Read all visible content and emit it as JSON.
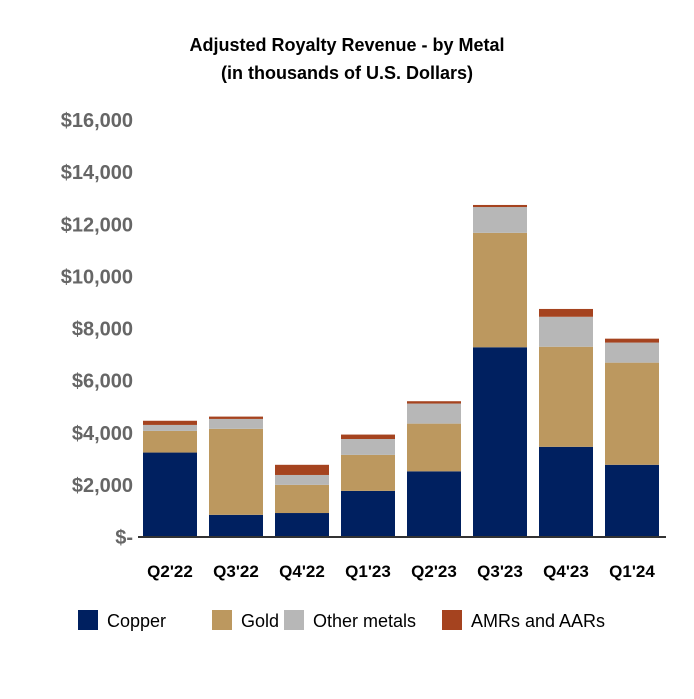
{
  "chart_data": {
    "type": "bar",
    "stacked": true,
    "title": "Adjusted Royalty Revenue - by Metal",
    "subtitle": "(in thousands of U.S. Dollars)",
    "xlabel": "",
    "ylabel": "",
    "ylim": [
      0,
      16000
    ],
    "yticks": [
      0,
      2000,
      4000,
      6000,
      8000,
      10000,
      12000,
      14000,
      16000
    ],
    "ytick_labels": [
      "$-",
      "$2,000",
      "$4,000",
      "$6,000",
      "$8,000",
      "$10,000",
      "$12,000",
      "$14,000",
      "$16,000"
    ],
    "grid": false,
    "legend_position": "bottom",
    "categories": [
      "Q2'22",
      "Q3'22",
      "Q4'22",
      "Q1'23",
      "Q2'23",
      "Q3'23",
      "Q4'23",
      "Q1'24"
    ],
    "series": [
      {
        "name": "Copper",
        "color": "#002060",
        "values": [
          3240,
          850,
          920,
          1770,
          2520,
          7280,
          3460,
          2770
        ]
      },
      {
        "name": "Gold",
        "color": "#BC985F",
        "values": [
          830,
          3300,
          1080,
          1380,
          1830,
          4390,
          3840,
          3920
        ]
      },
      {
        "name": "Other metals",
        "color": "#B7B7B7",
        "values": [
          230,
          380,
          380,
          610,
          770,
          990,
          1150,
          770
        ]
      },
      {
        "name": "AMRs and AARs",
        "color": "#A5431F",
        "values": [
          160,
          90,
          390,
          170,
          90,
          80,
          300,
          150
        ]
      }
    ]
  }
}
